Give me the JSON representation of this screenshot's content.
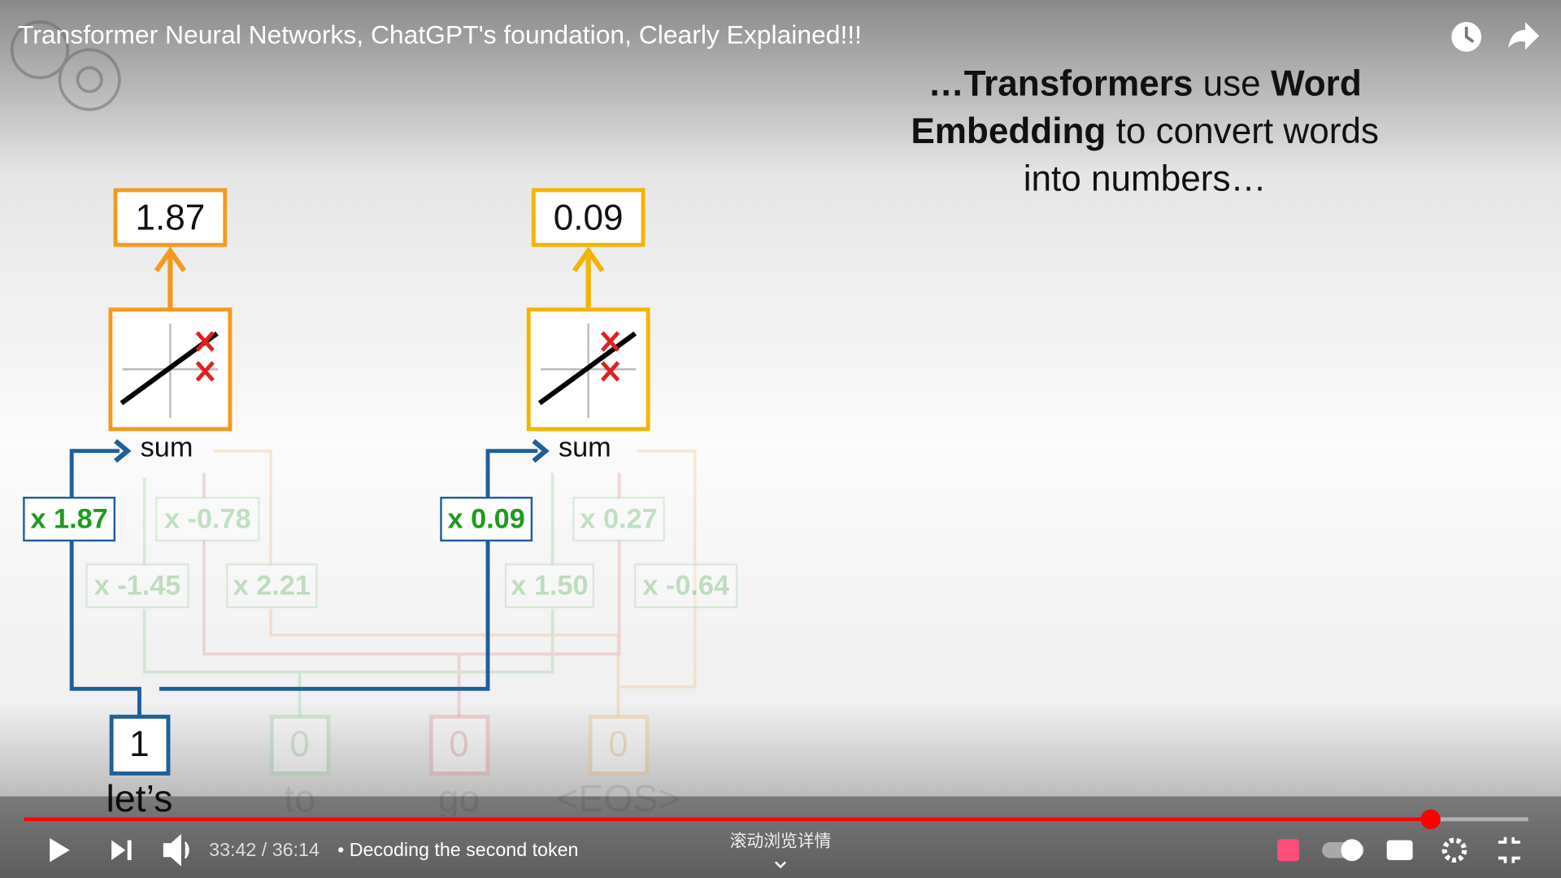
{
  "player": {
    "title": "Transformer Neural Networks, ChatGPT's foundation, Clearly Explained!!!",
    "time": "33:42 / 36:14",
    "chapter": "• Decoding the second token",
    "scroll_hint": "滚动浏览详情"
  },
  "slide": {
    "caption": [
      [
        "…Transformers",
        " use ",
        "Word"
      ],
      [
        "Embedding",
        " to convert words"
      ],
      [
        "into numbers…"
      ]
    ],
    "neurons": [
      {
        "output": "1.87",
        "sum": "sum",
        "weights": [
          "x 1.87",
          "x -0.78",
          "x -1.45",
          "x 2.21"
        ]
      },
      {
        "output": "0.09",
        "sum": "sum",
        "weights": [
          "x 0.09",
          "x 0.27",
          "x 1.50",
          "x -0.64"
        ]
      }
    ],
    "inputs": [
      {
        "value": "1",
        "word": "let’s"
      },
      {
        "value": "0",
        "word": "to"
      },
      {
        "value": "0",
        "word": "go"
      },
      {
        "value": "0",
        "word": "<EOS>"
      }
    ]
  }
}
